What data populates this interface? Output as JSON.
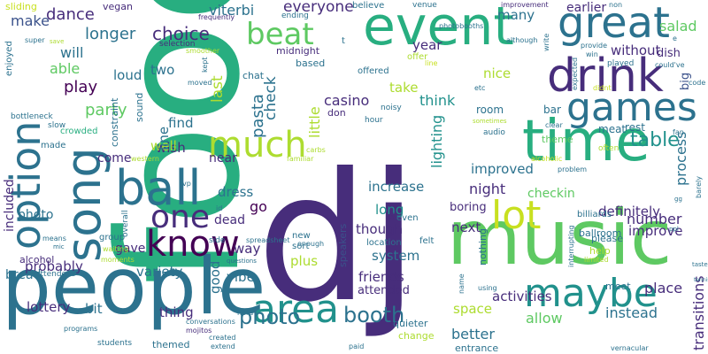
{
  "words": {
    "food": "food",
    "dj": "dj",
    "music": "music",
    "people": "people",
    "time": "time",
    "song": "song",
    "great": "great",
    "event": "event",
    "drink": "drink",
    "ball": "ball",
    "option": "option",
    "games": "games",
    "maybe": "maybe",
    "much": "much",
    "know": "know",
    "lot": "lot",
    "one": "one",
    "area": "area",
    "beat": "beat",
    "photo": "photo",
    "booth": "booth",
    "table": "table",
    "choice": "choice",
    "dance": "dance",
    "longer": "longer",
    "party": "party",
    "play": "play",
    "everyone": "everyone",
    "earlier": "earlier",
    "salad": "salad",
    "viterbi": "viterbi",
    "vegan": "vegan",
    "make": "make",
    "will": "will",
    "able": "able",
    "loud": "loud",
    "two": "two",
    "last": "last",
    "pasta": "pasta",
    "check": "check",
    "little": "little",
    "casino": "casino",
    "think": "think",
    "lighting": "lighting",
    "year": "year",
    "without": "without",
    "dish": "dish",
    "take": "take",
    "nice": "nice",
    "many": "many",
    "improvement": "improvement",
    "process": "process",
    "transitions": "transitions",
    "definitely": "definitely",
    "number": "number",
    "improve": "improve",
    "improved": "improved",
    "night": "night",
    "increase": "increase",
    "checkin": "checkin",
    "wish": "wish",
    "well": "well",
    "find": "find",
    "near": "near",
    "dress": "dress",
    "dead": "dead",
    "go": "go",
    "long": "long",
    "though": "though",
    "next": "next",
    "boring": "boring",
    "system": "system",
    "friends": "friends",
    "attended": "attended",
    "space": "space",
    "activities": "activities",
    "place": "place",
    "instead": "instead",
    "allow": "allow",
    "better": "better",
    "vibe": "vibe",
    "good": "good",
    "plus": "plus",
    "way": "way",
    "probably": "probably",
    "variety": "variety",
    "bit": "bit",
    "thing": "thing",
    "gave": "gave",
    "lottery": "lottery",
    "bread": "bread",
    "alcohol": "alcohol",
    "included": "included",
    "come": "come",
    "room": "room",
    "bar": "bar",
    "rest": "rest",
    "meat": "meat",
    "theme": "theme",
    "billiards": "billiards",
    "ballroom": "ballroom",
    "please": "please",
    "help": "help",
    "meet": "meet",
    "entrance": "entrance",
    "change": "change",
    "quieter": "quieter",
    "nothing": "nothing",
    "speakers": "speakers",
    "location": "location",
    "felt": "felt",
    "sort": "sort",
    "new": "new",
    "even": "even",
    "s": "s",
    "midnight": "midnight",
    "based": "based",
    "chat": "chat",
    "sound": "sound",
    "constraint": "constraint",
    "made": "made",
    "crowded": "crowded",
    "sliding": "sliding",
    "super": "super",
    "save": "save",
    "bottleneck": "bottleneck",
    "slow": "slow",
    "enjoyed": "enjoyed",
    "frequently": "frequently",
    "selection": "selection",
    "smoother": "smoother",
    "moved": "moved",
    "kept": "kept",
    "ending": "ending",
    "believe": "believe",
    "venue": "venue",
    "photobooths": "photobooths",
    "t": "t",
    "offer": "offer",
    "line": "line",
    "offered": "offered",
    "noisy": "noisy",
    "hour": "hour",
    "don": "don",
    "etc": "etc",
    "sometimes": "sometimes",
    "audio": "audio",
    "although": "although",
    "non": "non",
    "write": "write",
    "provide": "provide",
    "win": "win",
    "played": "played",
    "couldve": "could've",
    "expected": "expected",
    "didnt": "didnt",
    "big": "big",
    "code": "code",
    "e": "e",
    "alcoholic": "alcoholic",
    "problem": "problem",
    "often": "often",
    "fan": "fan",
    "clear": "clear",
    "gg": "gg",
    "barely": "barely",
    "carbs": "carbs",
    "familiar": "familiar",
    "western": "western",
    "overall": "overall",
    "vp": "vp",
    "side": "side",
    "spreadsheet": "spreadsheet",
    "group": "group",
    "means": "means",
    "mic": "mic",
    "waiting": "waiting",
    "moments": "moments",
    "attendees": "attendees",
    "programs": "programs",
    "students": "students",
    "themed": "themed",
    "mojitos": "mojitos",
    "created": "created",
    "extend": "extend",
    "conversations": "conversations",
    "hard": "hard",
    "questions": "questions",
    "enough": "enough",
    "id": "id",
    "paid": "paid",
    "interrupting": "interrupting",
    "limited": "limited",
    "using": "using",
    "name": "name",
    "tasted": "tasted",
    "tennis": "tennis",
    "ppl": "ppl",
    "vernacular": "vernacular"
  },
  "palette": [
    "#440154",
    "#472d7b",
    "#3b528b",
    "#2c728e",
    "#21918c",
    "#28ae80",
    "#5ec962",
    "#addc30",
    "#c8e020"
  ]
}
